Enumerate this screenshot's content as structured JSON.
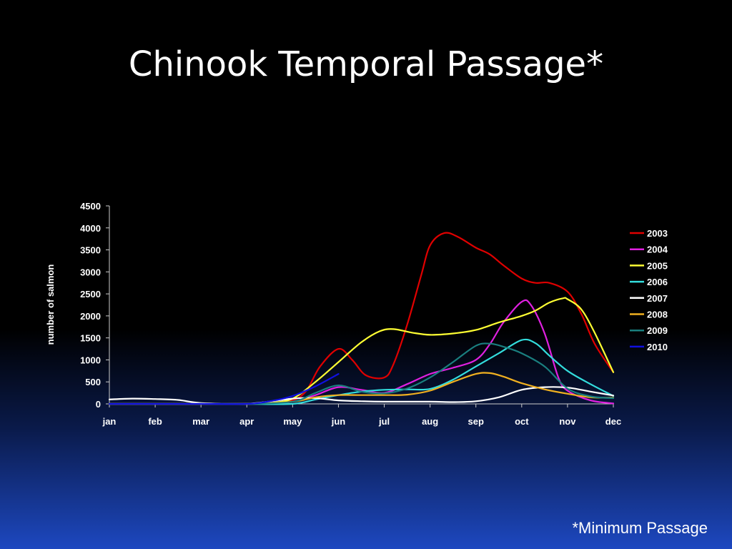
{
  "slide": {
    "title": "Chinook Temporal Passage*",
    "footnote": "*Minimum Passage"
  },
  "chart_data": {
    "type": "line",
    "title": "",
    "xlabel": "",
    "ylabel": "number of salmon",
    "ylim": [
      0,
      4500
    ],
    "yticks": [
      0,
      500,
      1000,
      1500,
      2000,
      2500,
      3000,
      3500,
      4000,
      4500
    ],
    "categories": [
      "jan",
      "feb",
      "mar",
      "apr",
      "may",
      "jun",
      "jul",
      "aug",
      "sep",
      "oct",
      "nov",
      "dec"
    ],
    "legend_position": "right",
    "grid": false,
    "series": [
      {
        "name": "2003",
        "color": "#e00000",
        "points": [
          [
            0,
            0
          ],
          [
            1,
            0
          ],
          [
            2,
            0
          ],
          [
            3,
            0
          ],
          [
            3.5,
            20
          ],
          [
            4,
            80
          ],
          [
            4.3,
            300
          ],
          [
            4.6,
            850
          ],
          [
            5,
            1250
          ],
          [
            5.3,
            1000
          ],
          [
            5.6,
            650
          ],
          [
            6,
            600
          ],
          [
            6.2,
            900
          ],
          [
            6.5,
            1800
          ],
          [
            6.8,
            2900
          ],
          [
            7,
            3600
          ],
          [
            7.3,
            3880
          ],
          [
            7.6,
            3800
          ],
          [
            8,
            3550
          ],
          [
            8.3,
            3400
          ],
          [
            8.6,
            3150
          ],
          [
            9,
            2850
          ],
          [
            9.3,
            2750
          ],
          [
            9.6,
            2750
          ],
          [
            10,
            2550
          ],
          [
            10.3,
            2050
          ],
          [
            10.6,
            1350
          ],
          [
            11,
            720
          ]
        ]
      },
      {
        "name": "2004",
        "color": "#e020e0",
        "points": [
          [
            0,
            0
          ],
          [
            1,
            0
          ],
          [
            2,
            0
          ],
          [
            3,
            0
          ],
          [
            3.5,
            10
          ],
          [
            4,
            50
          ],
          [
            4.5,
            200
          ],
          [
            5,
            380
          ],
          [
            5.5,
            320
          ],
          [
            6,
            250
          ],
          [
            6.5,
            450
          ],
          [
            7,
            680
          ],
          [
            7.5,
            820
          ],
          [
            8,
            1000
          ],
          [
            8.3,
            1350
          ],
          [
            8.6,
            1850
          ],
          [
            9,
            2320
          ],
          [
            9.2,
            2250
          ],
          [
            9.5,
            1600
          ],
          [
            9.8,
            600
          ],
          [
            10,
            300
          ],
          [
            10.5,
            80
          ],
          [
            11,
            10
          ]
        ]
      },
      {
        "name": "2005",
        "color": "#ffff33",
        "points": [
          [
            0,
            0
          ],
          [
            1,
            0
          ],
          [
            2,
            0
          ],
          [
            3,
            0
          ],
          [
            3.5,
            20
          ],
          [
            4,
            120
          ],
          [
            4.5,
            500
          ],
          [
            5,
            950
          ],
          [
            5.5,
            1400
          ],
          [
            5.9,
            1650
          ],
          [
            6.2,
            1700
          ],
          [
            6.6,
            1620
          ],
          [
            7,
            1570
          ],
          [
            7.5,
            1600
          ],
          [
            8,
            1680
          ],
          [
            8.5,
            1850
          ],
          [
            9,
            2000
          ],
          [
            9.3,
            2120
          ],
          [
            9.6,
            2300
          ],
          [
            9.9,
            2400
          ],
          [
            10,
            2380
          ],
          [
            10.3,
            2150
          ],
          [
            10.6,
            1600
          ],
          [
            11,
            720
          ]
        ]
      },
      {
        "name": "2006",
        "color": "#33dddd",
        "points": [
          [
            0,
            0
          ],
          [
            1,
            0
          ],
          [
            2,
            0
          ],
          [
            3,
            0
          ],
          [
            4,
            0
          ],
          [
            4.5,
            100
          ],
          [
            5,
            200
          ],
          [
            5.5,
            280
          ],
          [
            6,
            320
          ],
          [
            6.5,
            330
          ],
          [
            7,
            340
          ],
          [
            7.5,
            550
          ],
          [
            8,
            850
          ],
          [
            8.5,
            1150
          ],
          [
            9,
            1450
          ],
          [
            9.3,
            1380
          ],
          [
            9.6,
            1100
          ],
          [
            10,
            750
          ],
          [
            10.5,
            450
          ],
          [
            11,
            180
          ]
        ]
      },
      {
        "name": "2007",
        "color": "#ffffff",
        "points": [
          [
            0,
            100
          ],
          [
            0.5,
            120
          ],
          [
            1,
            110
          ],
          [
            1.5,
            90
          ],
          [
            2,
            20
          ],
          [
            3,
            0
          ],
          [
            4,
            120
          ],
          [
            4.5,
            130
          ],
          [
            5,
            80
          ],
          [
            5.5,
            60
          ],
          [
            6,
            50
          ],
          [
            7,
            50
          ],
          [
            7.5,
            40
          ],
          [
            8,
            60
          ],
          [
            8.5,
            150
          ],
          [
            9,
            320
          ],
          [
            9.5,
            380
          ],
          [
            10,
            370
          ],
          [
            10.5,
            280
          ],
          [
            11,
            190
          ]
        ]
      },
      {
        "name": "2008",
        "color": "#f0b020",
        "points": [
          [
            0,
            0
          ],
          [
            1,
            0
          ],
          [
            2,
            0
          ],
          [
            3,
            0
          ],
          [
            4,
            50
          ],
          [
            4.5,
            150
          ],
          [
            5,
            200
          ],
          [
            5.5,
            200
          ],
          [
            6,
            200
          ],
          [
            6.5,
            210
          ],
          [
            7,
            300
          ],
          [
            7.5,
            500
          ],
          [
            8,
            680
          ],
          [
            8.3,
            700
          ],
          [
            8.6,
            620
          ],
          [
            9,
            470
          ],
          [
            9.5,
            330
          ],
          [
            10,
            230
          ],
          [
            10.5,
            150
          ],
          [
            11,
            140
          ]
        ]
      },
      {
        "name": "2009",
        "color": "#1a7f7f",
        "points": [
          [
            0,
            0
          ],
          [
            1,
            0
          ],
          [
            2,
            0
          ],
          [
            3,
            0
          ],
          [
            4,
            50
          ],
          [
            4.5,
            250
          ],
          [
            5,
            420
          ],
          [
            5.5,
            280
          ],
          [
            6,
            240
          ],
          [
            6.5,
            350
          ],
          [
            7,
            600
          ],
          [
            7.5,
            950
          ],
          [
            8,
            1320
          ],
          [
            8.3,
            1370
          ],
          [
            8.6,
            1300
          ],
          [
            9,
            1150
          ],
          [
            9.5,
            850
          ],
          [
            10,
            350
          ],
          [
            10.5,
            170
          ],
          [
            11,
            130
          ]
        ]
      },
      {
        "name": "2010",
        "color": "#1010e0",
        "points": [
          [
            0,
            0
          ],
          [
            1,
            0
          ],
          [
            2,
            0
          ],
          [
            3,
            0
          ],
          [
            3.5,
            60
          ],
          [
            4,
            180
          ],
          [
            4.5,
            400
          ],
          [
            5,
            680
          ]
        ]
      }
    ]
  }
}
